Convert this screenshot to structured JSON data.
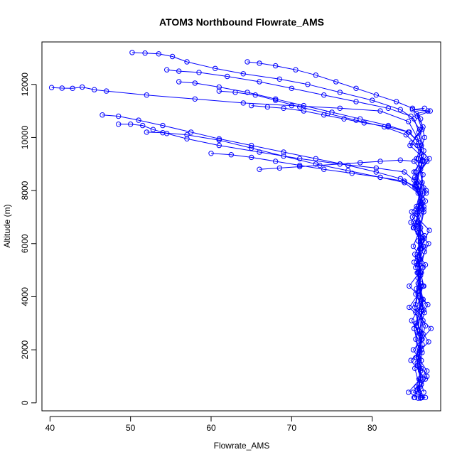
{
  "chart_data": {
    "type": "scatter",
    "title": "ATOM3 Northbound Flowrate_AMS",
    "xlabel": "Flowrate_AMS",
    "ylabel": "Altitude (m)",
    "xlim": [
      39,
      88.5
    ],
    "ylim": [
      -300,
      13600
    ],
    "xticks": [
      40,
      50,
      60,
      70,
      80
    ],
    "yticks": [
      0,
      2000,
      4000,
      6000,
      8000,
      10000,
      12000
    ],
    "point_style": "open-circle",
    "connected": true,
    "grid": false,
    "series": [
      {
        "color": "#0000ff",
        "profiles": [
          {
            "x": [
              50.2,
              51.8,
              53.5,
              55.2,
              57.0,
              60.5,
              64.0,
              68.5,
              72.0,
              76.0,
              80.0,
              83.5,
              85.2,
              85.8,
              86.1,
              85.5,
              86.3,
              85.9,
              86.4,
              85.7,
              86.2,
              85.6,
              86.0,
              85.4,
              86.5,
              85.8,
              86.1,
              85.3,
              85.9,
              86.2
            ],
            "y": [
              13200,
              13180,
              13150,
              13050,
              12850,
              12600,
              12400,
              12200,
              12000,
              11700,
              11400,
              11050,
              10700,
              10200,
              9700,
              9200,
              8600,
              8000,
              7400,
              6800,
              6100,
              5500,
              4800,
              4100,
              3400,
              2700,
              2000,
              1300,
              600,
              200
            ]
          },
          {
            "x": [
              40.2,
              41.5,
              42.8,
              44.0,
              45.5,
              47.0,
              52.0,
              58.0,
              64.0,
              70.0,
              76.0,
              81.0,
              84.5,
              85.6,
              86.4,
              85.2,
              86.7,
              85.5,
              86.0,
              85.1,
              86.6,
              85.7,
              86.3,
              84.9,
              86.2,
              85.4,
              86.8,
              85.6,
              86.0
            ],
            "y": [
              11880,
              11860,
              11850,
              11900,
              11800,
              11750,
              11600,
              11450,
              11300,
              11200,
              11100,
              11000,
              10600,
              10000,
              9300,
              8700,
              8000,
              7300,
              6600,
              5900,
              5200,
              4500,
              3800,
              3100,
              2400,
              1700,
              1000,
              500,
              180
            ]
          },
          {
            "x": [
              48.5,
              50.0,
              51.5,
              52.8,
              54.5,
              57.0,
              61.0,
              66.0,
              71.0,
              76.0,
              80.5,
              84.0,
              85.5,
              86.2,
              85.0,
              86.5,
              85.3,
              86.1,
              85.8,
              86.4,
              85.2,
              86.0,
              85.6,
              86.3,
              85.1,
              86.6,
              85.7
            ],
            "y": [
              10500,
              10500,
              10450,
              10300,
              10150,
              9950,
              9700,
              9450,
              9200,
              9000,
              8850,
              8700,
              8300,
              7700,
              7000,
              6300,
              5600,
              4900,
              4200,
              3500,
              2800,
              2100,
              1500,
              900,
              400,
              200,
              180
            ]
          },
          {
            "x": [
              54.5,
              56.0,
              58.5,
              62.0,
              66.0,
              70.0,
              74.0,
              78.0,
              82.0,
              84.8,
              85.9,
              86.4,
              85.4,
              86.0,
              85.6,
              86.5,
              85.2,
              86.1,
              85.8,
              86.3,
              85.5,
              86.0,
              85.3
            ],
            "y": [
              12550,
              12500,
              12450,
              12300,
              12100,
              11850,
              11600,
              11350,
              11100,
              10800,
              10300,
              9500,
              8700,
              7900,
              7100,
              6200,
              5300,
              4400,
              3500,
              2600,
              1700,
              900,
              200
            ]
          },
          {
            "x": [
              52.0,
              54.0,
              57.0,
              61.0,
              65.0,
              69.0,
              73.0,
              77.0,
              81.0,
              84.0,
              85.7,
              86.2,
              85.1,
              86.4,
              85.6,
              86.0,
              85.4,
              86.6,
              85.8,
              86.1,
              85.5,
              86.2
            ],
            "y": [
              10200,
              10180,
              10100,
              9900,
              9600,
              9300,
              9000,
              8750,
              8500,
              8300,
              7900,
              7300,
              6600,
              5900,
              5200,
              4500,
              3700,
              2900,
              2100,
              1300,
              600,
              200
            ]
          },
          {
            "x": [
              56.0,
              58.0,
              61.0,
              64.5,
              68.0,
              71.5,
              75.0,
              78.5,
              82.0,
              84.6,
              85.8,
              86.3,
              85.5,
              86.0,
              85.2,
              86.5,
              85.7,
              86.2,
              85.4,
              86.0
            ],
            "y": [
              12100,
              12050,
              11900,
              11700,
              11450,
              11200,
              10950,
              10700,
              10450,
              10200,
              9800,
              9100,
              8300,
              7500,
              6600,
              5700,
              4700,
              3600,
              2400,
              1200
            ]
          },
          {
            "x": [
              61.0,
              63.0,
              65.5,
              68.0,
              71.0,
              74.5,
              78.0,
              81.5,
              84.2,
              85.6,
              86.1,
              85.3,
              86.4,
              85.7,
              86.0,
              85.5,
              86.3,
              85.8,
              86.1
            ],
            "y": [
              11750,
              11700,
              11600,
              11400,
              11150,
              10900,
              10650,
              10400,
              10100,
              9700,
              9000,
              8200,
              7300,
              6400,
              5400,
              4300,
              3100,
              1900,
              700
            ]
          },
          {
            "x": [
              60.0,
              62.5,
              65.0,
              68.0,
              71.0,
              74.0,
              77.5,
              81.0,
              84.0,
              85.5,
              86.2,
              85.4,
              86.0,
              85.6,
              86.3,
              85.2,
              86.1,
              85.8
            ],
            "y": [
              9400,
              9350,
              9250,
              9100,
              8950,
              8800,
              8650,
              8500,
              8350,
              8100,
              7500,
              6700,
              5800,
              4900,
              3900,
              2800,
              1600,
              400
            ]
          },
          {
            "x": [
              65.0,
              67.0,
              69.0,
              71.5,
              74.0,
              76.5,
              79.0,
              82.0,
              84.5,
              85.8,
              86.2,
              85.5,
              86.4,
              85.7,
              86.0,
              85.3,
              86.2
            ],
            "y": [
              11200,
              11150,
              11100,
              11000,
              10850,
              10700,
              10550,
              10400,
              10200,
              9800,
              9100,
              8200,
              7200,
              6100,
              4900,
              3600,
              2200
            ]
          },
          {
            "x": [
              66.0,
              68.5,
              71.0,
              73.5,
              76.0,
              78.5,
              81.0,
              83.5,
              85.2,
              86.0,
              86.4,
              85.6,
              86.1,
              85.4,
              86.3,
              85.9
            ],
            "y": [
              8800,
              8850,
              8900,
              8950,
              9000,
              9050,
              9100,
              9150,
              9100,
              8800,
              8100,
              7200,
              6200,
              5100,
              3900,
              2600
            ]
          },
          {
            "x": [
              64.5,
              66.0,
              68.0,
              70.5,
              73.0,
              75.5,
              78.0,
              80.5,
              83.0,
              85.0,
              86.0,
              86.5,
              85.7,
              86.2,
              85.5,
              86.0,
              85.8,
              86.3,
              85.4,
              86.1,
              85.6,
              86.4
            ],
            "y": [
              12850,
              12800,
              12700,
              12550,
              12350,
              12100,
              11850,
              11600,
              11350,
              11100,
              10700,
              10000,
              9200,
              8300,
              7400,
              6400,
              5400,
              4400,
              3400,
              2400,
              1400,
              400
            ]
          },
          {
            "x": [
              46.5,
              48.5,
              51.0,
              54.0,
              57.5,
              61.0,
              65.0,
              69.0,
              73.0,
              77.0,
              80.5,
              83.5,
              85.3,
              86.0,
              85.4,
              86.3,
              85.7,
              86.1,
              85.5,
              86.2,
              85.8,
              86.0
            ],
            "y": [
              10850,
              10800,
              10650,
              10450,
              10200,
              9950,
              9700,
              9450,
              9200,
              8950,
              8700,
              8450,
              8150,
              7600,
              6800,
              5900,
              4900,
              3900,
              2900,
              1900,
              900,
              200
            ]
          },
          {
            "x": [
              85.2,
              86.6,
              84.8,
              87.0,
              85.5,
              86.9,
              84.6,
              86.3,
              85.9,
              87.1,
              84.9,
              86.7,
              85.3,
              86.8,
              84.7,
              86.2,
              85.6,
              87.2,
              85.0,
              86.5
            ],
            "y": [
              200,
              900,
              1600,
              2300,
              3000,
              3700,
              4400,
              5100,
              5800,
              6500,
              7200,
              7900,
              8500,
              9100,
              9700,
              10300,
              10800,
              11000,
              11050,
              11100
            ]
          },
          {
            "x": [
              84.5,
              86.8,
              85.1,
              87.3,
              84.6,
              86.4,
              85.8,
              87.0,
              84.8,
              86.6,
              85.2,
              87.1,
              84.9,
              86.3,
              85.5,
              86.9
            ],
            "y": [
              400,
              1200,
              2000,
              2800,
              3600,
              4400,
              5200,
              6000,
              6800,
              7600,
              8400,
              9200,
              9800,
              10400,
              10900,
              11000
            ]
          }
        ]
      }
    ]
  }
}
